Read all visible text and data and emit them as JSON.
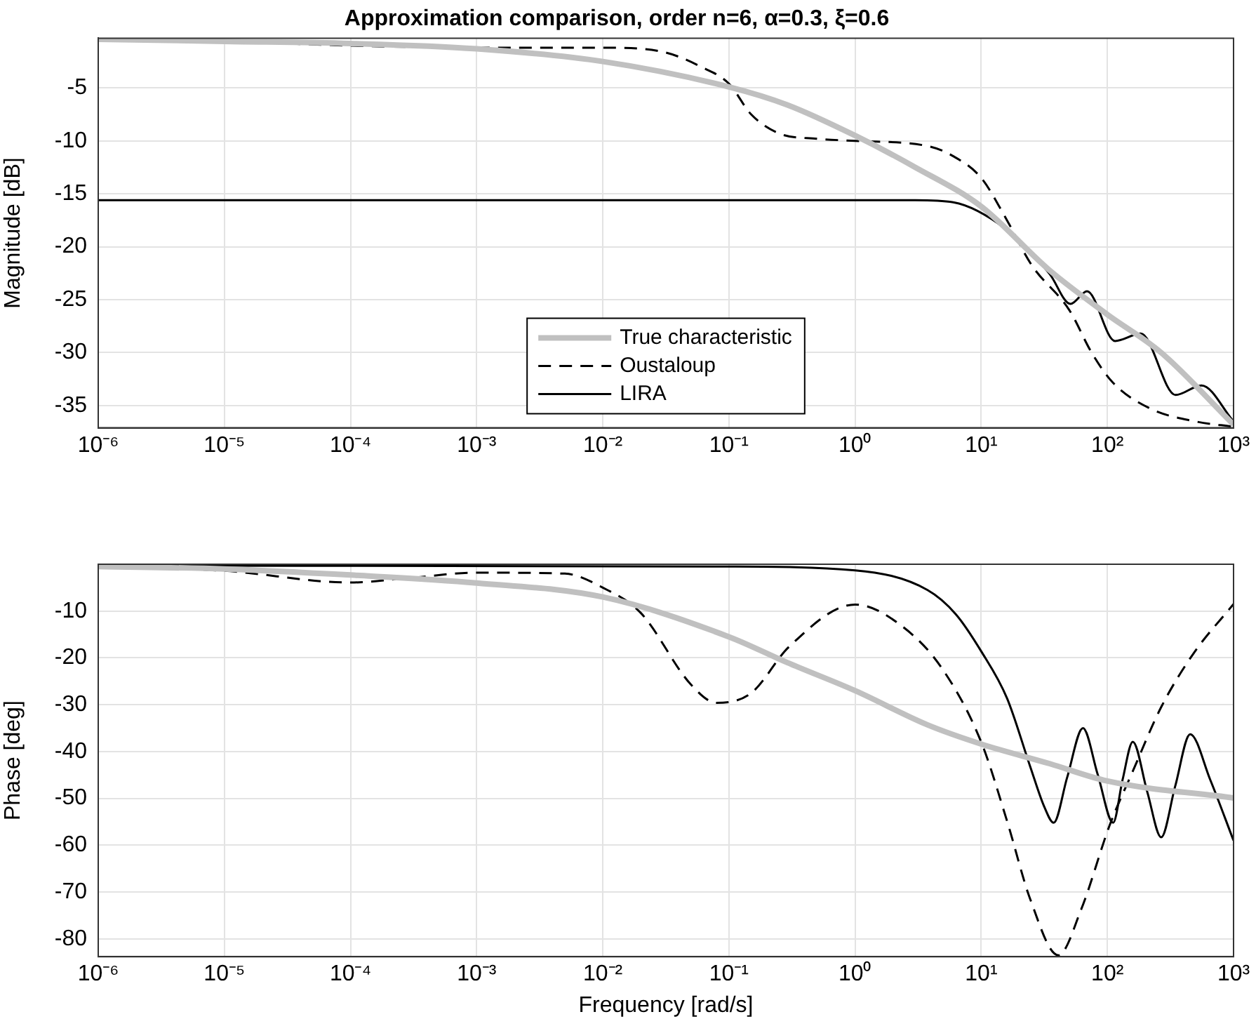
{
  "chart_data": [
    {
      "type": "line",
      "title": "Approximation comparison, order n=6, α=0.3, ξ=0.6",
      "ylabel": "Magnitude [dB]",
      "log": "x",
      "grid": true,
      "legend": "bottom",
      "marker": "none",
      "xlim": [
        1e-06,
        1000
      ],
      "xticks": [
        {
          "value": 1e-06,
          "label": "10⁻⁶"
        },
        {
          "value": 1e-05,
          "label": "10⁻⁵"
        },
        {
          "value": 0.0001,
          "label": "10⁻⁴"
        },
        {
          "value": 0.001,
          "label": "10⁻³"
        },
        {
          "value": 0.01,
          "label": "10⁻²"
        },
        {
          "value": 0.1,
          "label": "10⁻¹"
        },
        {
          "value": 1,
          "label": "10⁰"
        },
        {
          "value": 10,
          "label": "10¹"
        },
        {
          "value": 100,
          "label": "10²"
        },
        {
          "value": 1000,
          "label": "10³"
        }
      ],
      "ylim": [
        -37.1,
        -0.3
      ],
      "yticks": [
        -35,
        -30,
        -25,
        -20,
        -15,
        -10,
        -5
      ],
      "series": [
        {
          "name": "True characteristic",
          "color": "#c0c0c0",
          "line_style": "solid",
          "x": [
            1e-06,
            1e-05,
            0.0001,
            0.001,
            0.01,
            0.1,
            0.29,
            1,
            3,
            10,
            34.6,
            100,
            267,
            1000
          ],
          "values": [
            -0.4,
            -0.6,
            -0.8,
            -1.3,
            -2.5,
            -4.9,
            -6.6,
            -9.5,
            -12.5,
            -16.2,
            -22.2,
            -26.4,
            -30,
            -36.8
          ]
        },
        {
          "name": "Oustaloup",
          "color": "#000000",
          "line_style": "dashed",
          "x": [
            1e-06,
            1e-05,
            0.0001,
            0.001,
            0.01,
            0.03,
            0.06,
            0.1,
            0.15,
            0.25,
            0.5,
            1,
            3.8,
            5.9,
            10,
            16,
            25,
            50,
            75,
            110,
            220,
            500,
            1000
          ],
          "values": [
            -0.4,
            -0.6,
            -1,
            -1.2,
            -1.2,
            -1.6,
            -3,
            -4.6,
            -7.5,
            -9.3,
            -9.8,
            -10,
            -10.5,
            -11.4,
            -13.5,
            -17.5,
            -21.7,
            -26,
            -30,
            -32.8,
            -35.3,
            -36.5,
            -37
          ]
        },
        {
          "name": "LIRA",
          "color": "#000000",
          "line_style": "solid",
          "x": [
            1e-06,
            0.01,
            1,
            3,
            6,
            16,
            25,
            35,
            51,
            69,
            115,
            184,
            347,
            557,
            1000
          ],
          "values": [
            -15.6,
            -15.6,
            -15.6,
            -15.6,
            -15.8,
            -18.4,
            -20.7,
            -22.6,
            -25.4,
            -24.2,
            -28.9,
            -28.2,
            -34,
            -33.1,
            -36.5
          ]
        }
      ]
    },
    {
      "type": "line",
      "xlabel": "Frequency [rad/s]",
      "ylabel": "Phase [deg]",
      "log": "x",
      "grid": true,
      "marker": "none",
      "xlim": [
        1e-06,
        1000
      ],
      "xticks": [
        {
          "value": 1e-06,
          "label": "10⁻⁶"
        },
        {
          "value": 1e-05,
          "label": "10⁻⁵"
        },
        {
          "value": 0.0001,
          "label": "10⁻⁴"
        },
        {
          "value": 0.001,
          "label": "10⁻³"
        },
        {
          "value": 0.01,
          "label": "10⁻²"
        },
        {
          "value": 0.1,
          "label": "10⁻¹"
        },
        {
          "value": 1,
          "label": "10⁰"
        },
        {
          "value": 10,
          "label": "10¹"
        },
        {
          "value": 100,
          "label": "10²"
        },
        {
          "value": 1000,
          "label": "10³"
        }
      ],
      "ylim": [
        -83.8,
        0
      ],
      "yticks": [
        -80,
        -70,
        -60,
        -50,
        -40,
        -30,
        -20,
        -10
      ],
      "series": [
        {
          "color": "#c0c0c0",
          "line_style": "solid",
          "x": [
            1e-06,
            1e-05,
            0.0001,
            0.001,
            0.01,
            0.1,
            0.29,
            1,
            3.75,
            10,
            35,
            100,
            1000
          ],
          "values": [
            -0.5,
            -1,
            -2.3,
            -4,
            -7,
            -15.5,
            -21,
            -27,
            -34.3,
            -38.4,
            -42.6,
            -46.3,
            -49.9
          ]
        },
        {
          "color": "#000000",
          "line_style": "dashed",
          "x": [
            1e-06,
            1e-05,
            0.0001,
            0.0003,
            0.001,
            0.005,
            0.01,
            0.02,
            0.05,
            0.08,
            0.15,
            0.3,
            1,
            2.4,
            4.9,
            10,
            16,
            24.5,
            40.8,
            62,
            104,
            159,
            267,
            483,
            1000
          ],
          "values": [
            -0.5,
            -1.4,
            -3.9,
            -2.9,
            -1.8,
            -2,
            -5,
            -10.4,
            -25.7,
            -29.6,
            -27.5,
            -17.6,
            -8.6,
            -13.4,
            -22.3,
            -38,
            -54.8,
            -71.6,
            -83.5,
            -73.7,
            -55.8,
            -44.2,
            -30.5,
            -19,
            -8.5
          ]
        },
        {
          "color": "#000000",
          "line_style": "solid",
          "x": [
            1e-06,
            0.1,
            1,
            3.75,
            6.3,
            10,
            16,
            24.5,
            31.6,
            37.5,
            48,
            64,
            84,
            111,
            132,
            159,
            207,
            267,
            344,
            453,
            653,
            1000
          ],
          "values": [
            -0.3,
            -0.5,
            -1.3,
            -5.5,
            -10.7,
            -18.6,
            -28.6,
            -43.3,
            -51.8,
            -55.2,
            -45.5,
            -35,
            -45,
            -55.2,
            -46,
            -37.9,
            -48.6,
            -58.3,
            -47.5,
            -36.3,
            -46,
            -59
          ]
        }
      ]
    }
  ]
}
